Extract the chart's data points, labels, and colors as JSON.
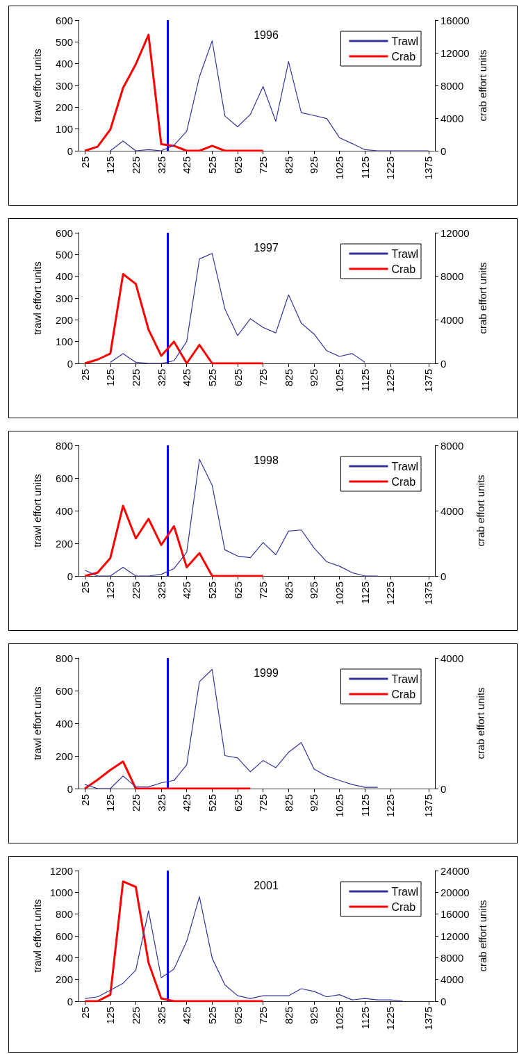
{
  "chart_data": [
    {
      "type": "line",
      "title": "1996",
      "ylabel": "trawl effort units",
      "y2label": "crab effort units",
      "x": [
        25,
        75,
        125,
        175,
        225,
        275,
        325,
        375,
        425,
        475,
        525,
        575,
        625,
        675,
        725,
        775,
        825,
        875,
        925,
        975,
        1025,
        1075,
        1125,
        1175,
        1225,
        1275,
        1375
      ],
      "xlim": [
        0,
        1400
      ],
      "xticks": [
        25,
        125,
        225,
        325,
        425,
        525,
        625,
        725,
        825,
        925,
        1025,
        1125,
        1225,
        1375
      ],
      "ylim": [
        0,
        600
      ],
      "yticks": [
        0,
        100,
        200,
        300,
        400,
        500,
        600
      ],
      "y2lim": [
        0,
        16000
      ],
      "y2ticks": [
        0,
        4000,
        8000,
        12000,
        16000
      ],
      "legend": "top right",
      "marker": "none",
      "grid": false,
      "ref_lines": [
        {
          "axis": "x",
          "value": 350,
          "color": "#0000ff"
        }
      ],
      "series": [
        {
          "name": "Trawl",
          "color": "#333399",
          "values": [
            null,
            null,
            0,
            45,
            0,
            5,
            0,
            25,
            90,
            340,
            505,
            160,
            110,
            167,
            295,
            135,
            410,
            175,
            162,
            148,
            60,
            33,
            5,
            0,
            0,
            0,
            0
          ]
        },
        {
          "name": "Crab",
          "color": "#ff0000",
          "axis": "y2",
          "values": [
            0,
            500,
            2600,
            7700,
            10600,
            14200,
            800,
            600,
            0,
            0,
            600,
            0,
            0,
            0,
            0,
            null,
            null,
            null,
            null,
            null,
            null,
            null,
            null,
            null,
            null,
            null,
            null
          ]
        }
      ]
    },
    {
      "type": "line",
      "title": "1997",
      "ylabel": "trawl effort units",
      "y2label": "crab effort units",
      "x": [
        25,
        75,
        125,
        175,
        225,
        275,
        325,
        375,
        425,
        475,
        525,
        575,
        625,
        675,
        725,
        775,
        825,
        875,
        925,
        975,
        1025,
        1075,
        1125
      ],
      "xlim": [
        0,
        1400
      ],
      "xticks": [
        25,
        125,
        225,
        325,
        425,
        525,
        625,
        725,
        825,
        925,
        1025,
        1125,
        1225,
        1375
      ],
      "ylim": [
        0,
        600
      ],
      "yticks": [
        0,
        100,
        200,
        300,
        400,
        500,
        600
      ],
      "y2lim": [
        0,
        12000
      ],
      "y2ticks": [
        0,
        4000,
        8000,
        12000
      ],
      "legend": "top right",
      "marker": "none",
      "grid": false,
      "ref_lines": [
        {
          "axis": "x",
          "value": 350,
          "color": "#0000ff"
        }
      ],
      "series": [
        {
          "name": "Trawl",
          "color": "#333399",
          "values": [
            null,
            null,
            5,
            45,
            5,
            0,
            0,
            12,
            100,
            480,
            505,
            250,
            128,
            205,
            165,
            140,
            315,
            185,
            135,
            58,
            32,
            45,
            5
          ]
        },
        {
          "name": "Crab",
          "color": "#ff0000",
          "axis": "y2",
          "values": [
            0,
            350,
            900,
            8200,
            7300,
            3100,
            700,
            2000,
            0,
            1700,
            0,
            0,
            0,
            0,
            0,
            null,
            null,
            null,
            null,
            null,
            null,
            null,
            null
          ]
        }
      ]
    },
    {
      "type": "line",
      "title": "1998",
      "ylabel": "trawl effort units",
      "y2label": "crab effort units",
      "x": [
        25,
        75,
        125,
        175,
        225,
        275,
        325,
        375,
        425,
        475,
        525,
        575,
        625,
        675,
        725,
        775,
        825,
        875,
        925,
        975,
        1025,
        1075,
        1125,
        1175
      ],
      "xlim": [
        0,
        1400
      ],
      "xticks": [
        25,
        125,
        225,
        325,
        425,
        525,
        625,
        725,
        825,
        925,
        1025,
        1125,
        1225,
        1375
      ],
      "ylim": [
        0,
        800
      ],
      "yticks": [
        0,
        200,
        400,
        600,
        800
      ],
      "y2lim": [
        0,
        8000
      ],
      "y2ticks": [
        0,
        4000,
        8000
      ],
      "legend": "top right",
      "marker": "none",
      "grid": false,
      "ref_lines": [
        {
          "axis": "x",
          "value": 350,
          "color": "#0000ff"
        }
      ],
      "series": [
        {
          "name": "Trawl",
          "color": "#333399",
          "values": [
            35,
            0,
            0,
            53,
            0,
            0,
            10,
            45,
            145,
            715,
            555,
            160,
            122,
            112,
            205,
            130,
            275,
            282,
            172,
            87,
            60,
            20,
            0,
            0
          ]
        },
        {
          "name": "Crab",
          "color": "#ff0000",
          "axis": "y2",
          "values": [
            0,
            200,
            1100,
            4300,
            2300,
            3500,
            1900,
            3050,
            530,
            1400,
            0,
            0,
            0,
            0,
            0,
            null,
            null,
            null,
            null,
            null,
            null,
            null,
            null,
            null
          ]
        }
      ]
    },
    {
      "type": "line",
      "title": "1999",
      "ylabel": "trawl effort units",
      "y2label": "crab effort units",
      "x": [
        25,
        75,
        125,
        175,
        225,
        275,
        325,
        375,
        425,
        475,
        525,
        575,
        625,
        675,
        725,
        775,
        825,
        875,
        925,
        975,
        1025,
        1075,
        1125,
        1175
      ],
      "xlim": [
        0,
        1400
      ],
      "xticks": [
        25,
        125,
        225,
        325,
        425,
        525,
        625,
        725,
        825,
        925,
        1025,
        1125,
        1225,
        1375
      ],
      "ylim": [
        0,
        800
      ],
      "yticks": [
        0,
        200,
        400,
        600,
        800
      ],
      "y2lim": [
        0,
        4000
      ],
      "y2ticks": [
        0,
        4000
      ],
      "legend": "top right",
      "marker": "none",
      "grid": false,
      "ref_lines": [
        {
          "axis": "x",
          "value": 350,
          "color": "#0000ff"
        }
      ],
      "series": [
        {
          "name": "Trawl",
          "color": "#333399",
          "values": [
            25,
            0,
            0,
            77,
            10,
            10,
            35,
            50,
            145,
            655,
            730,
            202,
            188,
            103,
            172,
            128,
            222,
            282,
            120,
            77,
            50,
            25,
            8,
            8
          ]
        },
        {
          "name": "Crab",
          "color": "#ff0000",
          "axis": "y2",
          "values": [
            0,
            270,
            570,
            830,
            0,
            0,
            0,
            0,
            0,
            0,
            0,
            0,
            0,
            0,
            null,
            null,
            null,
            null,
            null,
            null,
            null,
            null,
            null,
            null
          ]
        }
      ]
    },
    {
      "type": "line",
      "title": "2001",
      "ylabel": "trawl effort units",
      "y2label": "crab effort units",
      "x": [
        25,
        75,
        125,
        175,
        225,
        275,
        325,
        375,
        425,
        475,
        525,
        575,
        625,
        675,
        725,
        775,
        825,
        875,
        925,
        975,
        1025,
        1075,
        1125,
        1175,
        1225,
        1275
      ],
      "xlim": [
        0,
        1400
      ],
      "xticks": [
        25,
        125,
        225,
        325,
        425,
        525,
        625,
        725,
        825,
        925,
        1025,
        1125,
        1225,
        1375
      ],
      "ylim": [
        0,
        1200
      ],
      "yticks": [
        0,
        200,
        400,
        600,
        800,
        1000,
        1200
      ],
      "y2lim": [
        0,
        24000
      ],
      "y2ticks": [
        0,
        4000,
        8000,
        12000,
        16000,
        20000,
        24000
      ],
      "legend": "top right",
      "marker": "none",
      "grid": false,
      "ref_lines": [
        {
          "axis": "x",
          "value": 350,
          "color": "#0000ff"
        }
      ],
      "series": [
        {
          "name": "Trawl",
          "color": "#333399",
          "values": [
            25,
            40,
            100,
            165,
            285,
            830,
            215,
            295,
            550,
            960,
            395,
            150,
            50,
            25,
            50,
            50,
            50,
            115,
            90,
            40,
            60,
            12,
            25,
            12,
            12,
            0
          ]
        },
        {
          "name": "Crab",
          "color": "#ff0000",
          "axis": "y2",
          "values": [
            0,
            0,
            1200,
            22000,
            21000,
            7100,
            500,
            0,
            0,
            0,
            0,
            0,
            0,
            0,
            0,
            null,
            null,
            null,
            null,
            null,
            null,
            null,
            null,
            null,
            null,
            null
          ]
        }
      ]
    }
  ]
}
